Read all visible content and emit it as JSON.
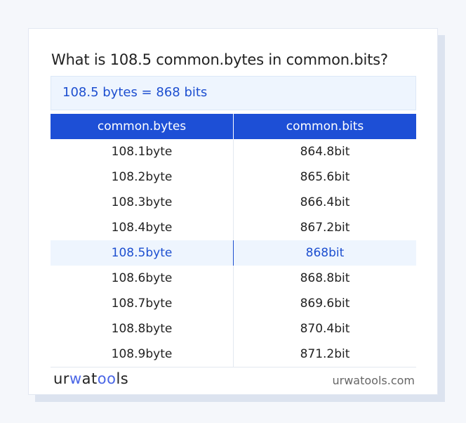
{
  "title": "What is 108.5 common.bytes in common.bits?",
  "result": "108.5 bytes = 868 bits",
  "table": {
    "headers": [
      "common.bytes",
      "common.bits"
    ],
    "highlight_index": 4,
    "rows": [
      [
        "108.1byte",
        "864.8bit"
      ],
      [
        "108.2byte",
        "865.6bit"
      ],
      [
        "108.3byte",
        "866.4bit"
      ],
      [
        "108.4byte",
        "867.2bit"
      ],
      [
        "108.5byte",
        "868bit"
      ],
      [
        "108.6byte",
        "868.8bit"
      ],
      [
        "108.7byte",
        "869.6bit"
      ],
      [
        "108.8byte",
        "870.4bit"
      ],
      [
        "108.9byte",
        "871.2bit"
      ]
    ]
  },
  "footer": {
    "logo": "urwatools",
    "site": "urwatools.com"
  },
  "colors": {
    "accent": "#1d4fd6",
    "highlight_bg": "#eef5fe"
  }
}
